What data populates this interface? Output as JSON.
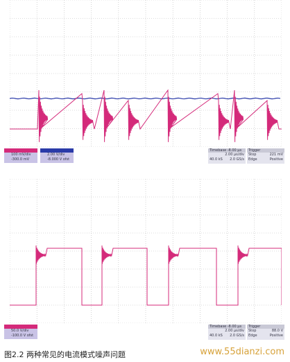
{
  "panels": [
    {
      "channels": [
        {
          "scale": "100 mV/div",
          "offset": "-300.0 mV"
        },
        {
          "scale": "2.00 V/div",
          "offset": "-8.000 V ofst"
        }
      ],
      "timebase": {
        "title": "Timebase",
        "delay": "-8.00 µs",
        "scale": "2.00 µs/div",
        "samples": "40.0 kS",
        "rate": "2.0 GS/s"
      },
      "trigger": {
        "title": "Trigger",
        "mode": "Stop",
        "type": "Edge",
        "level": "221 mV",
        "slope": "Positive"
      }
    },
    {
      "channels": [
        {
          "scale": "50.0 V/div",
          "offset": "-100.0 V ofst"
        }
      ],
      "timebase": {
        "title": "Timebase",
        "delay": "-8.00 µs",
        "scale": "2.00 µs/div",
        "samples": "40.0 kS",
        "rate": "2.0 GS/s"
      },
      "trigger": {
        "title": "Trigger",
        "mode": "Stop",
        "type": "Edge",
        "level": "88.0 V",
        "slope": "Positive"
      }
    }
  ],
  "caption": "图2.2 两种常见的电流模式噪声问题",
  "watermark": "www.55dianzi.com"
}
